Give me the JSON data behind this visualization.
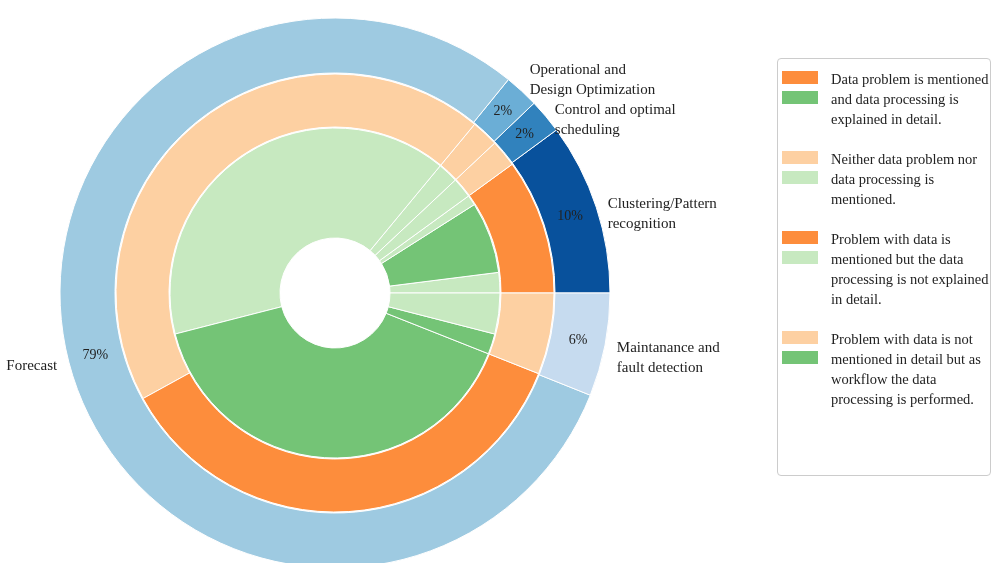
{
  "chart_data": [
    {
      "type": "donut",
      "categories": [
        "Clustering/Pattern recognition",
        "Control and optimal scheduling",
        "Operational and Design Optimization",
        "Forecast",
        "Maintanance and fault detection"
      ],
      "values": [
        10,
        2,
        2,
        79,
        6
      ],
      "colors": [
        "#08519c",
        "#3182bd",
        "#6baed6",
        "#9ecae1",
        "#c6dbef"
      ],
      "value_labels": [
        "10%",
        "2%",
        "2%",
        "79%",
        "6%"
      ]
    },
    {
      "type": "donut",
      "categories": [
        null,
        null,
        null,
        null,
        null,
        null
      ],
      "values": [
        10,
        2,
        2,
        44,
        36,
        6
      ],
      "colors": [
        "#fd8d3c",
        "#fdd0a2",
        "#fdd0a2",
        "#fdd0a2",
        "#fd8d3c",
        "#fdd0a2"
      ]
    },
    {
      "type": "donut",
      "categories": [
        null,
        null,
        null,
        null,
        null,
        null,
        null,
        null,
        null
      ],
      "values": [
        2,
        7,
        1,
        2,
        2,
        40,
        40,
        2,
        4
      ],
      "colors": [
        "#c7e9c0",
        "#74c476",
        "#c7e9c0",
        "#c7e9c0",
        "#c7e9c0",
        "#c7e9c0",
        "#74c476",
        "#74c476",
        "#c7e9c0"
      ]
    },
    {
      "type": "other",
      "annotations": [
        "Data problem is mentioned and data processing is explained in detail.",
        "Neither data problem nor data processing is mentioned.",
        "Problem with data is mentioned but the data processing is not explained in detail.",
        "Problem with data is not mentioned in detail but as workflow the data processing is performed."
      ],
      "colors": [
        "#fd8d3c",
        "#74c476",
        "#fdd0a2",
        "#c7e9c0",
        "#fd8d3c",
        "#c7e9c0",
        "#fdd0a2",
        "#74c476"
      ]
    }
  ]
}
